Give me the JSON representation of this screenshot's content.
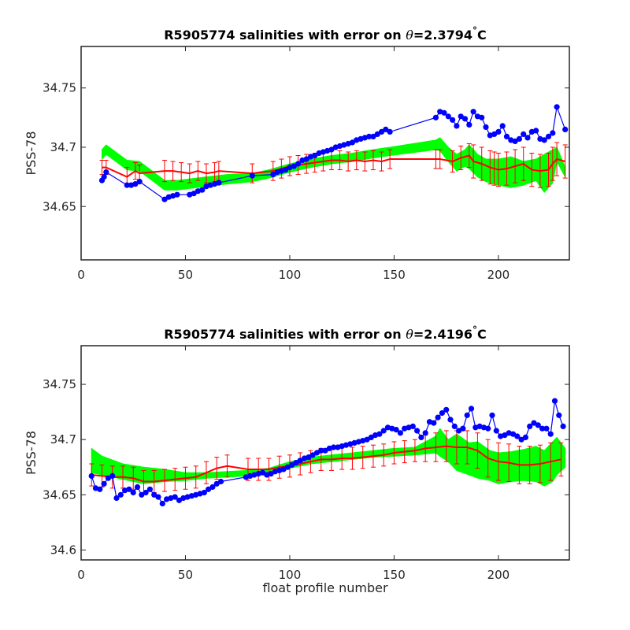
{
  "chart_data": [
    {
      "type": "scatter",
      "title_prefix": "R5905774 salinities with error on ",
      "title_symbol": "θ",
      "title_value": "=2.3794",
      "title_degree": "°",
      "title_unit": "C",
      "xlabel": "",
      "ylabel": "PSS-78",
      "xlim": [
        0,
        234
      ],
      "ylim": [
        34.605,
        34.785
      ],
      "xticks": [
        0,
        50,
        100,
        150,
        200
      ],
      "yticks": [
        34.65,
        34.7,
        34.75
      ],
      "ytick_labels": [
        "34.65",
        "34.7",
        "34.75"
      ],
      "colors": {
        "band": "#00ff00",
        "mapped": "#ff0000",
        "float": "#0000ff"
      },
      "series": [
        {
          "role": "float",
          "x": [
            10,
            11,
            12,
            22,
            24,
            26,
            28,
            40,
            42,
            44,
            46,
            52,
            54,
            56,
            58,
            60,
            62,
            64,
            66,
            82,
            92,
            94,
            96,
            98,
            100,
            102,
            104,
            106,
            108,
            110,
            112,
            114,
            116,
            118,
            120,
            122,
            124,
            126,
            128,
            130,
            132,
            134,
            136,
            138,
            140,
            142,
            144,
            146,
            148,
            170,
            172,
            174,
            176,
            178,
            180,
            182,
            184,
            186,
            188,
            190,
            192,
            194,
            196,
            198,
            200,
            202,
            204,
            206,
            208,
            210,
            212,
            214,
            216,
            218,
            220,
            222,
            224,
            226,
            228,
            232
          ],
          "y": [
            34.672,
            34.675,
            34.679,
            34.668,
            34.668,
            34.669,
            34.671,
            34.656,
            34.658,
            34.659,
            34.66,
            34.66,
            34.661,
            34.663,
            34.664,
            34.667,
            34.668,
            34.669,
            34.67,
            34.676,
            34.677,
            34.679,
            34.68,
            34.681,
            34.683,
            34.684,
            34.686,
            34.689,
            34.69,
            34.692,
            34.693,
            34.695,
            34.696,
            34.697,
            34.698,
            34.7,
            34.701,
            34.702,
            34.703,
            34.704,
            34.706,
            34.707,
            34.708,
            34.709,
            34.709,
            34.711,
            34.713,
            34.715,
            34.713,
            34.725,
            34.73,
            34.729,
            34.726,
            34.723,
            34.718,
            34.726,
            34.724,
            34.719,
            34.73,
            34.726,
            34.725,
            34.717,
            34.71,
            34.711,
            34.713,
            34.718,
            34.709,
            34.706,
            34.705,
            34.707,
            34.711,
            34.708,
            34.713,
            34.714,
            34.707,
            34.706,
            34.709,
            34.712,
            34.734,
            34.715
          ]
        },
        {
          "role": "mapped",
          "x": [
            10,
            12,
            22,
            26,
            28,
            40,
            44,
            48,
            52,
            56,
            60,
            64,
            66,
            82,
            92,
            96,
            100,
            104,
            108,
            112,
            116,
            120,
            124,
            128,
            132,
            136,
            140,
            144,
            148,
            170,
            172,
            178,
            182,
            186,
            188,
            192,
            196,
            198,
            200,
            204,
            208,
            212,
            216,
            220,
            224,
            226,
            228,
            232
          ],
          "y": [
            34.683,
            34.683,
            34.675,
            34.68,
            34.678,
            34.68,
            34.68,
            34.679,
            34.678,
            34.68,
            34.678,
            34.679,
            34.68,
            34.678,
            34.68,
            34.682,
            34.684,
            34.685,
            34.686,
            34.687,
            34.688,
            34.689,
            34.689,
            34.688,
            34.689,
            34.688,
            34.689,
            34.688,
            34.69,
            34.69,
            34.69,
            34.688,
            34.691,
            34.693,
            34.688,
            34.686,
            34.683,
            34.682,
            34.681,
            34.682,
            34.684,
            34.686,
            34.681,
            34.68,
            34.681,
            34.686,
            34.69,
            34.688
          ],
          "err": [
            0.006,
            0.006,
            0.008,
            0.007,
            0.007,
            0.009,
            0.008,
            0.008,
            0.008,
            0.008,
            0.008,
            0.008,
            0.008,
            0.008,
            0.008,
            0.008,
            0.008,
            0.008,
            0.008,
            0.008,
            0.008,
            0.008,
            0.008,
            0.008,
            0.008,
            0.008,
            0.008,
            0.008,
            0.008,
            0.008,
            0.008,
            0.009,
            0.01,
            0.01,
            0.014,
            0.014,
            0.014,
            0.014,
            0.014,
            0.014,
            0.014,
            0.014,
            0.014,
            0.014,
            0.014,
            0.014,
            0.014,
            0.014
          ]
        },
        {
          "role": "band",
          "x": [
            10,
            12,
            22,
            28,
            40,
            46,
            60,
            70,
            82,
            90,
            100,
            110,
            120,
            130,
            140,
            148,
            170,
            172,
            176,
            180,
            184,
            186,
            190,
            194,
            200,
            206,
            212,
            218,
            222,
            226,
            228,
            232
          ],
          "upper": [
            34.698,
            34.702,
            34.689,
            34.688,
            34.672,
            34.672,
            34.675,
            34.677,
            34.678,
            34.681,
            34.686,
            34.69,
            34.693,
            34.695,
            34.698,
            34.7,
            34.706,
            34.708,
            34.7,
            34.694,
            34.698,
            34.702,
            34.694,
            34.69,
            34.69,
            34.692,
            34.688,
            34.69,
            34.694,
            34.698,
            34.7,
            34.683
          ],
          "lower": [
            34.69,
            34.694,
            34.681,
            34.68,
            34.664,
            34.664,
            34.667,
            34.669,
            34.671,
            34.674,
            34.679,
            34.683,
            34.686,
            34.688,
            34.691,
            34.693,
            34.698,
            34.697,
            34.688,
            34.68,
            34.684,
            34.682,
            34.675,
            34.671,
            34.668,
            34.666,
            34.668,
            34.672,
            34.662,
            34.67,
            34.688,
            34.675
          ]
        }
      ]
    },
    {
      "type": "scatter",
      "title_prefix": "R5905774 salinities with error on ",
      "title_symbol": "θ",
      "title_value": "=2.4196",
      "title_degree": "°",
      "title_unit": "C",
      "xlabel": "float profile number",
      "ylabel": "PSS-78",
      "xlim": [
        0,
        234
      ],
      "ylim": [
        34.591,
        34.785
      ],
      "xticks": [
        0,
        50,
        100,
        150,
        200
      ],
      "yticks": [
        34.6,
        34.65,
        34.7,
        34.75
      ],
      "ytick_labels": [
        "34.6",
        "34.65",
        "34.7",
        "34.75"
      ],
      "colors": {
        "band": "#00ff00",
        "mapped": "#ff0000",
        "float": "#0000ff"
      },
      "series": [
        {
          "role": "float",
          "x": [
            5,
            7,
            9,
            11,
            13,
            15,
            17,
            19,
            21,
            23,
            25,
            27,
            29,
            31,
            33,
            35,
            37,
            39,
            41,
            43,
            45,
            47,
            49,
            51,
            53,
            55,
            57,
            59,
            61,
            63,
            65,
            67,
            79,
            81,
            83,
            85,
            87,
            89,
            91,
            93,
            95,
            97,
            99,
            101,
            103,
            105,
            107,
            109,
            111,
            113,
            115,
            117,
            119,
            121,
            123,
            125,
            127,
            129,
            131,
            133,
            135,
            137,
            139,
            141,
            143,
            145,
            147,
            149,
            151,
            153,
            155,
            157,
            159,
            161,
            163,
            165,
            167,
            169,
            171,
            173,
            175,
            177,
            179,
            181,
            183,
            185,
            187,
            189,
            191,
            193,
            195,
            197,
            199,
            201,
            203,
            205,
            207,
            209,
            211,
            213,
            215,
            217,
            219,
            221,
            223,
            225,
            227,
            229,
            231
          ],
          "y": [
            34.667,
            34.656,
            34.655,
            34.66,
            34.665,
            34.667,
            34.647,
            34.65,
            34.654,
            34.655,
            34.652,
            34.657,
            34.65,
            34.652,
            34.655,
            34.65,
            34.648,
            34.642,
            34.646,
            34.647,
            34.648,
            34.645,
            34.647,
            34.648,
            34.649,
            34.65,
            34.651,
            34.652,
            34.655,
            34.657,
            34.66,
            34.662,
            34.666,
            34.667,
            34.668,
            34.669,
            34.67,
            34.668,
            34.669,
            34.671,
            34.672,
            34.673,
            34.675,
            34.677,
            34.679,
            34.681,
            34.683,
            34.684,
            34.686,
            34.688,
            34.69,
            34.69,
            34.692,
            34.693,
            34.693,
            34.694,
            34.695,
            34.696,
            34.697,
            34.698,
            34.699,
            34.7,
            34.702,
            34.704,
            34.705,
            34.708,
            34.711,
            34.71,
            34.709,
            34.706,
            34.71,
            34.711,
            34.712,
            34.708,
            34.702,
            34.706,
            34.716,
            34.715,
            34.72,
            34.724,
            34.727,
            34.718,
            34.712,
            34.708,
            34.71,
            34.722,
            34.728,
            34.711,
            34.712,
            34.711,
            34.71,
            34.722,
            34.708,
            34.703,
            34.704,
            34.706,
            34.705,
            34.703,
            34.7,
            34.702,
            34.712,
            34.715,
            34.713,
            34.71,
            34.71,
            34.705,
            34.735,
            34.722,
            34.712
          ]
        },
        {
          "role": "mapped",
          "x": [
            5,
            10,
            15,
            20,
            25,
            30,
            35,
            40,
            45,
            50,
            55,
            60,
            65,
            70,
            80,
            85,
            90,
            95,
            100,
            105,
            110,
            115,
            120,
            125,
            130,
            135,
            140,
            145,
            150,
            155,
            160,
            165,
            170,
            175,
            180,
            185,
            190,
            195,
            200,
            205,
            210,
            215,
            220,
            225,
            230
          ],
          "y": [
            34.668,
            34.667,
            34.666,
            34.666,
            34.665,
            34.662,
            34.662,
            34.663,
            34.664,
            34.665,
            34.666,
            34.67,
            34.674,
            34.676,
            34.673,
            34.673,
            34.673,
            34.675,
            34.676,
            34.678,
            34.68,
            34.682,
            34.682,
            34.683,
            34.683,
            34.684,
            34.685,
            34.686,
            34.688,
            34.689,
            34.69,
            34.692,
            34.693,
            34.694,
            34.693,
            34.693,
            34.69,
            34.683,
            34.68,
            34.679,
            34.677,
            34.677,
            34.678,
            34.68,
            34.682
          ],
          "err": [
            0.01,
            0.01,
            0.01,
            0.01,
            0.01,
            0.01,
            0.01,
            0.01,
            0.01,
            0.01,
            0.01,
            0.01,
            0.01,
            0.01,
            0.01,
            0.01,
            0.01,
            0.01,
            0.01,
            0.01,
            0.01,
            0.01,
            0.01,
            0.01,
            0.01,
            0.01,
            0.01,
            0.01,
            0.01,
            0.01,
            0.01,
            0.012,
            0.013,
            0.014,
            0.015,
            0.015,
            0.016,
            0.017,
            0.017,
            0.017,
            0.017,
            0.017,
            0.017,
            0.017,
            0.015
          ]
        },
        {
          "role": "band",
          "x": [
            5,
            10,
            20,
            30,
            40,
            50,
            60,
            70,
            80,
            90,
            100,
            110,
            120,
            130,
            140,
            150,
            160,
            170,
            172,
            176,
            180,
            186,
            190,
            196,
            200,
            206,
            212,
            218,
            222,
            226,
            228,
            232
          ],
          "upper": [
            34.692,
            34.685,
            34.678,
            34.675,
            34.673,
            34.67,
            34.67,
            34.671,
            34.672,
            34.674,
            34.68,
            34.684,
            34.686,
            34.688,
            34.69,
            34.692,
            34.693,
            34.703,
            34.71,
            34.7,
            34.705,
            34.697,
            34.698,
            34.69,
            34.688,
            34.689,
            34.691,
            34.694,
            34.69,
            34.698,
            34.702,
            34.692
          ],
          "lower": [
            34.67,
            34.668,
            34.664,
            34.66,
            34.662,
            34.663,
            34.665,
            34.666,
            34.667,
            34.67,
            34.674,
            34.678,
            34.68,
            34.682,
            34.684,
            34.685,
            34.686,
            34.688,
            34.685,
            34.68,
            34.672,
            34.668,
            34.665,
            34.663,
            34.66,
            34.662,
            34.663,
            34.662,
            34.658,
            34.662,
            34.668,
            34.675
          ]
        }
      ]
    }
  ]
}
